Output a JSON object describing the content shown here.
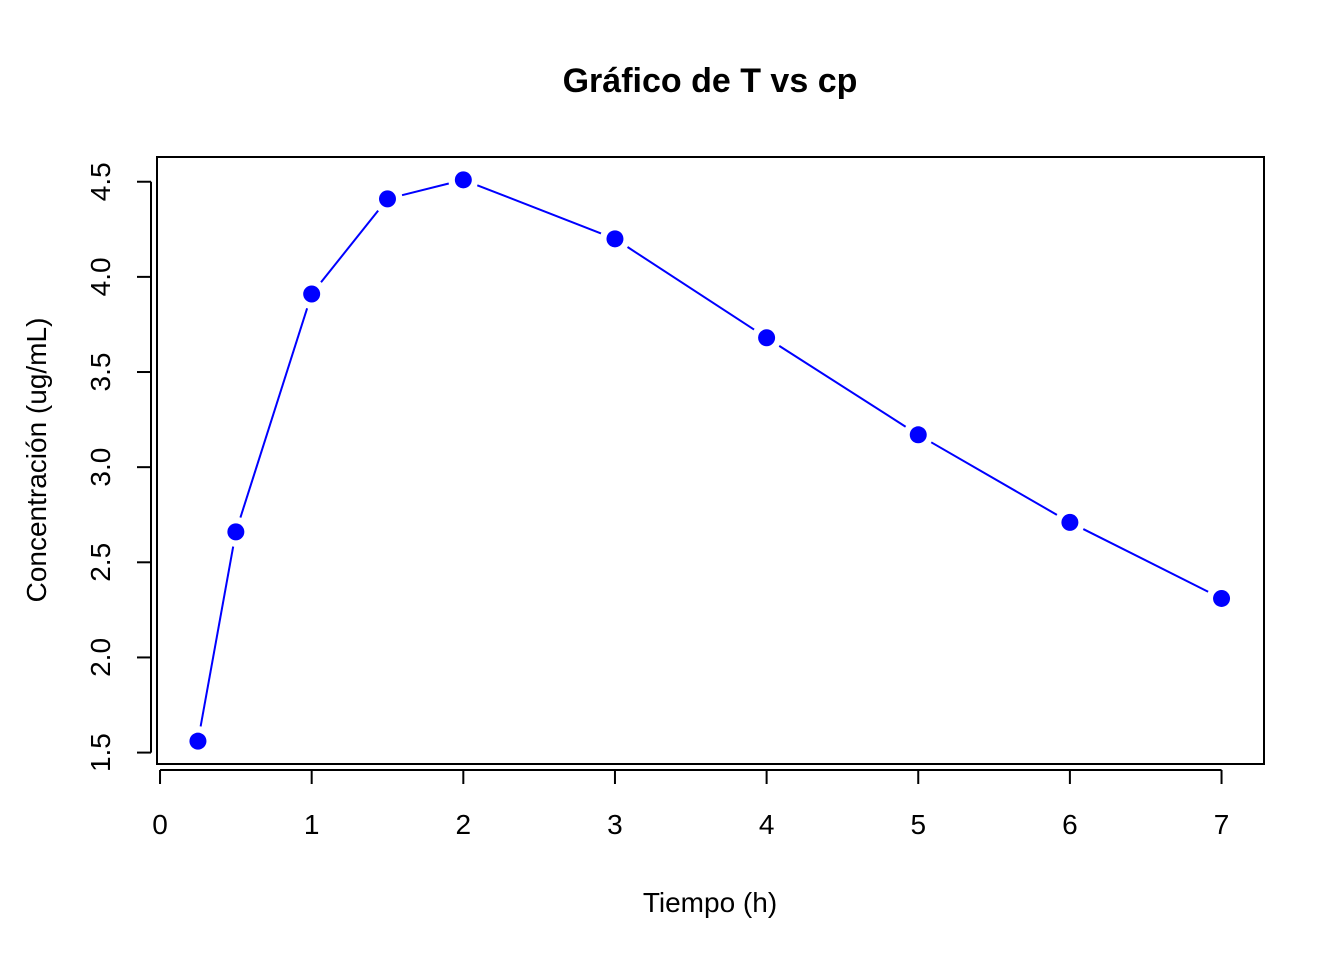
{
  "chart_data": {
    "type": "line",
    "title": "Gráfico de T vs cp",
    "xlabel": "Tiempo (h)",
    "ylabel": "Concentración (ug/mL)",
    "x_ticks": [
      "0",
      "1",
      "2",
      "3",
      "4",
      "5",
      "6",
      "7"
    ],
    "y_ticks": [
      "1.5",
      "2.0",
      "2.5",
      "3.0",
      "3.5",
      "4.0",
      "4.5"
    ],
    "xlim": [
      -0.02,
      7.28
    ],
    "ylim": [
      1.44,
      4.63
    ],
    "grid": false,
    "legend": "none",
    "series": [
      {
        "color": "#0000ff",
        "marker": "filled-circle",
        "line_style": "overplotted",
        "x": [
          0.25,
          0.5,
          1,
          1.5,
          2,
          3,
          4,
          5,
          6,
          7
        ],
        "y": [
          1.56,
          2.66,
          3.91,
          4.41,
          4.51,
          4.2,
          3.68,
          3.17,
          2.71,
          2.31
        ]
      }
    ]
  }
}
